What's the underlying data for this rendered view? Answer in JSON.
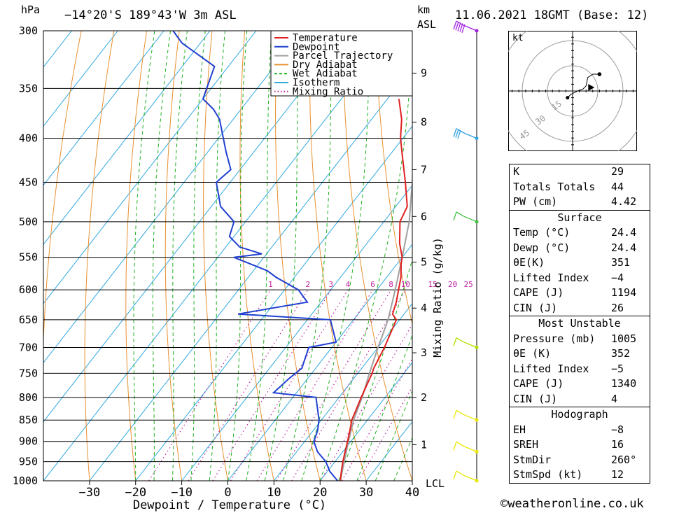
{
  "header": {
    "pressure_unit": "hPa",
    "location": "-14°20'S 189°43'W 3m ASL",
    "km_unit": "km",
    "asl_label": "ASL",
    "datetime": "11.06.2021 18GMT (Base: 12)"
  },
  "chart_data": {
    "type": "line",
    "title": "-14°20'S 189°43'W 3m ASL",
    "subtitle": "11.06.2021 18GMT (Base: 12)",
    "xlabel": "Dewpoint / Temperature (°C)",
    "ylabel": "hPa",
    "y2label": "Mixing Ratio (g/kg)",
    "xlim": [
      -40,
      40
    ],
    "ylim": [
      1000,
      300
    ],
    "x_ticks": [
      -30,
      -20,
      -10,
      0,
      10,
      20,
      30,
      40
    ],
    "pressure_levels": [
      300,
      350,
      400,
      450,
      500,
      550,
      600,
      650,
      700,
      750,
      800,
      850,
      900,
      950,
      1000
    ],
    "km_ticks": [
      {
        "label": "1",
        "p": 908
      },
      {
        "label": "2",
        "p": 800
      },
      {
        "label": "3",
        "p": 710
      },
      {
        "label": "4",
        "p": 630
      },
      {
        "label": "5",
        "p": 557
      },
      {
        "label": "6",
        "p": 493
      },
      {
        "label": "7",
        "p": 435
      },
      {
        "label": "8",
        "p": 383
      },
      {
        "label": "9",
        "p": 336
      }
    ],
    "lcl_label": "LCL",
    "mixing_ratio_labels": [
      "1",
      "2",
      "3",
      "4",
      "6",
      "8",
      "10",
      "15",
      "20",
      "25"
    ],
    "legend": [
      "Temperature",
      "Dewpoint",
      "Parcel Trajectory",
      "Dry Adiabat",
      "Wet Adiabat",
      "Isotherm",
      "Mixing Ratio"
    ],
    "legend_position": "top-center",
    "series": [
      {
        "name": "Temperature",
        "color": "#e02020",
        "p": [
          1000,
          975,
          950,
          925,
          900,
          875,
          850,
          800,
          750,
          740,
          700,
          650,
          640,
          620,
          600,
          580,
          560,
          550,
          530,
          500,
          480,
          450,
          420,
          400,
          380,
          360
        ],
        "t": [
          24.4,
          23.0,
          21.7,
          20.5,
          19.3,
          18.0,
          16.6,
          14.8,
          13.1,
          12.6,
          11.4,
          9.3,
          7.5,
          6.3,
          4.7,
          3.1,
          0.9,
          0.0,
          -2.9,
          -6.5,
          -7.5,
          -12.0,
          -17.0,
          -20.5,
          -23.5,
          -27.5
        ]
      },
      {
        "name": "Dewpoint",
        "color": "#2040d0",
        "p": [
          1000,
          975,
          950,
          925,
          900,
          875,
          850,
          800,
          790,
          760,
          740,
          700,
          690,
          650,
          640,
          620,
          600,
          580,
          570,
          550,
          545,
          535,
          520,
          500,
          480,
          450,
          435,
          415,
          380,
          370,
          360,
          330,
          310,
          300
        ],
        "t": [
          23.8,
          20.5,
          18.0,
          14.5,
          12.0,
          11.0,
          9.5,
          5.0,
          -5.0,
          -4.0,
          -3.0,
          -5.0,
          0.0,
          -5.0,
          -26.0,
          -13.0,
          -17.0,
          -24.0,
          -27.0,
          -36.5,
          -31.0,
          -37.0,
          -41.0,
          -42.5,
          -48.0,
          -53.0,
          -52.0,
          -56.0,
          -63.0,
          -66.0,
          -70.0,
          -73.0,
          -84.0,
          -88.0
        ]
      },
      {
        "name": "Parcel Trajectory",
        "color": "#a0a0a0",
        "p": [
          1000,
          950,
          900,
          850,
          800,
          750,
          700,
          650,
          600,
          550,
          500,
          450,
          400,
          360
        ],
        "t": [
          24.4,
          22.0,
          19.5,
          17.0,
          15.0,
          12.5,
          10.0,
          7.5,
          4.0,
          0.0,
          -4.5,
          -10.5,
          -17.5,
          -23.5
        ]
      }
    ],
    "hodograph": {
      "unit_label": "kt",
      "ring_labels": [
        "15",
        "30",
        "45"
      ],
      "u_kt": [
        -3.0,
        -1.0,
        2.0,
        3.0,
        6.0,
        8.0,
        9.0,
        12.0,
        12.0,
        16.0
      ],
      "v_kt": [
        -4.0,
        -2.0,
        -0.5,
        0.0,
        1.0,
        3.0,
        8.0,
        10.0,
        10.0,
        10.0
      ],
      "storm_motion_u_kt": 11.8,
      "storm_motion_v_kt": 2.1
    },
    "wind_barb_levels": [
      {
        "p": 1000,
        "color": "#e8e800"
      },
      {
        "p": 925,
        "color": "#e8e800"
      },
      {
        "p": 850,
        "color": "#e8e800"
      },
      {
        "p": 700,
        "color": "#b0e000"
      },
      {
        "p": 500,
        "color": "#40c040"
      },
      {
        "p": 400,
        "color": "#30a0e0"
      },
      {
        "p": 300,
        "color": "#a020e0"
      }
    ]
  },
  "indices": [
    {
      "label": "K",
      "value": "29"
    },
    {
      "label": "Totals Totals",
      "value": "44"
    },
    {
      "label": "PW (cm)",
      "value": "4.42"
    }
  ],
  "surface": {
    "title": "Surface",
    "rows": [
      {
        "label": "Temp (°C)",
        "value": "24.4"
      },
      {
        "label": "Dewp (°C)",
        "value": "24.4"
      },
      {
        "label": "θE(K)",
        "value": "351"
      },
      {
        "label": "Lifted Index",
        "value": "-4"
      },
      {
        "label": "CAPE (J)",
        "value": "1194"
      },
      {
        "label": "CIN (J)",
        "value": "26"
      }
    ]
  },
  "most_unstable": {
    "title": "Most Unstable",
    "rows": [
      {
        "label": "Pressure (mb)",
        "value": "1005"
      },
      {
        "label": "θE (K)",
        "value": "352"
      },
      {
        "label": "Lifted Index",
        "value": "-5"
      },
      {
        "label": "CAPE (J)",
        "value": "1340"
      },
      {
        "label": "CIN (J)",
        "value": "4"
      }
    ]
  },
  "hodograph_table": {
    "title": "Hodograph",
    "rows": [
      {
        "label": "EH",
        "value": "-8"
      },
      {
        "label": "SREH",
        "value": "16"
      },
      {
        "label": "StmDir",
        "value": "260°"
      },
      {
        "label": "StmSpd (kt)",
        "value": "12"
      }
    ]
  },
  "credit": "©weatheronline.co.uk"
}
